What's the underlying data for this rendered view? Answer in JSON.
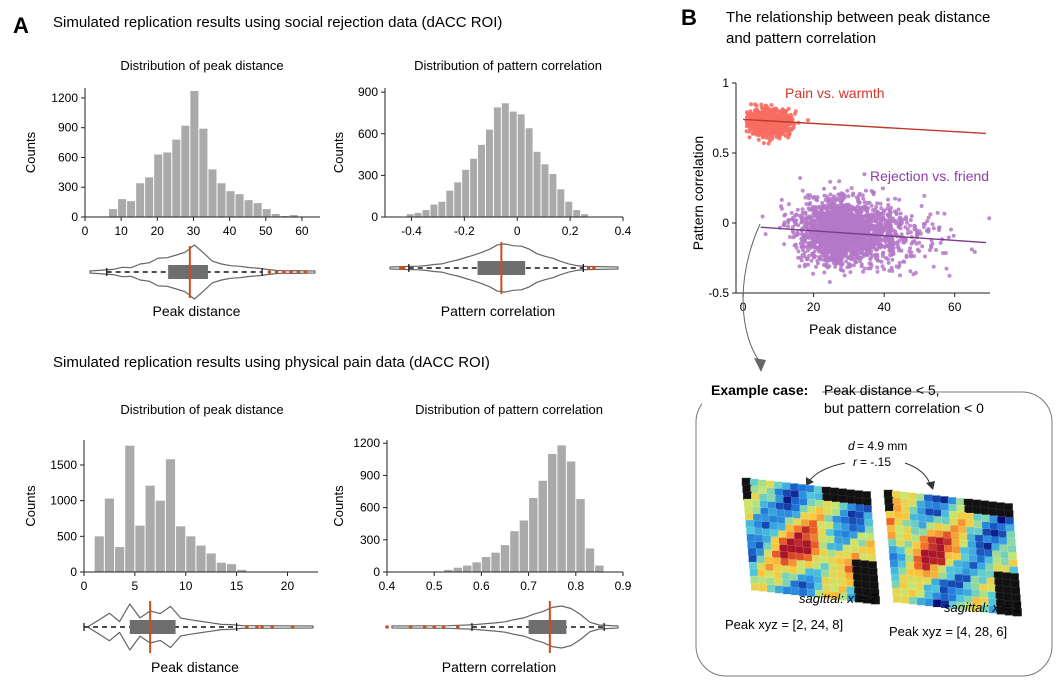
{
  "panel_a": {
    "letter": "A",
    "title_social": "Simulated replication results using social rejection data (dACC ROI)",
    "title_pain": "Simulated replication results using physical pain data (dACC ROI)"
  },
  "panel_b": {
    "letter": "B",
    "title_line1": "The relationship between peak distance",
    "title_line2": "and pattern correlation"
  },
  "example": {
    "heading": "Example case:",
    "line1": "Peak distance < 5,",
    "line2": "but pattern correlation < 0",
    "d_label": "d",
    "d_value": "= 4.9 mm",
    "r_label": "r",
    "r_value": "= -.15",
    "left_caption_italic": "sagittal: x = 2",
    "right_caption_italic": "sagittal: x = 2",
    "left_peak": "Peak xyz = [2, 24, 8]",
    "right_peak": "Peak xyz = [4, 28, 6]"
  },
  "colors": {
    "bar": "#aaaaaa",
    "violin_line": "#666666",
    "box": "#6e6e6e",
    "median": "#c8501c",
    "pain_scatter": "#f76d63",
    "pain_line": "#c0392b",
    "rejection_scatter": "#b478c8",
    "rejection_line": "#7a3b8c",
    "pain_label": "#d9342b",
    "rejection_label": "#8a3fa8"
  },
  "chart_data": [
    {
      "id": "social_peak",
      "type": "bar",
      "title": "Distribution of peak distance",
      "xlabel": "Peak distance",
      "ylabel": "Counts",
      "xlim": [
        0,
        65
      ],
      "ylim": [
        0,
        1300
      ],
      "xticks": [
        0,
        10,
        20,
        30,
        40,
        50,
        60
      ],
      "yticks": [
        0,
        300,
        600,
        900,
        1200
      ],
      "bin_width": 2.5,
      "bin_starts": [
        6.5,
        9,
        11.5,
        14,
        16.5,
        19,
        21.5,
        24,
        26.5,
        29,
        31.5,
        34,
        36.5,
        39,
        41.5,
        44,
        46.5,
        49,
        51.5,
        54,
        56.5
      ],
      "values": [
        80,
        180,
        160,
        340,
        400,
        630,
        650,
        780,
        920,
        1270,
        890,
        480,
        340,
        260,
        230,
        170,
        140,
        80,
        30,
        10,
        20
      ],
      "boxplot": {
        "q1": 23,
        "median": 29,
        "q3": 34,
        "whisker_low": 6,
        "whisker_high": 49,
        "outliers": [
          51,
          53,
          55,
          57,
          59,
          61
        ]
      }
    },
    {
      "id": "social_corr",
      "type": "bar",
      "title": "Distribution of pattern correlation",
      "xlabel": "Pattern correlation",
      "ylabel": "Counts",
      "xlim": [
        -0.5,
        0.4
      ],
      "ylim": [
        0,
        930
      ],
      "xticks": [
        -0.4,
        -0.2,
        0,
        0.2,
        0.4
      ],
      "xticklabels": [
        "-0.4",
        "-0.2",
        "0",
        "0.2",
        "0.4"
      ],
      "yticks": [
        0,
        300,
        600,
        900
      ],
      "bin_width": 0.03,
      "bin_starts": [
        -0.42,
        -0.39,
        -0.36,
        -0.33,
        -0.3,
        -0.27,
        -0.24,
        -0.21,
        -0.18,
        -0.15,
        -0.12,
        -0.09,
        -0.06,
        -0.03,
        0.0,
        0.03,
        0.06,
        0.09,
        0.12,
        0.15,
        0.18,
        0.21,
        0.24
      ],
      "values": [
        20,
        30,
        50,
        90,
        110,
        190,
        250,
        340,
        420,
        520,
        630,
        790,
        820,
        760,
        740,
        640,
        470,
        380,
        310,
        200,
        110,
        50,
        20
      ],
      "boxplot": {
        "q1": -0.15,
        "median": -0.06,
        "q3": 0.03,
        "whisker_low": -0.41,
        "whisker_high": 0.25,
        "outliers": [
          -0.44,
          -0.43,
          0.27,
          0.29
        ]
      }
    },
    {
      "id": "pain_peak",
      "type": "bar",
      "title": "Distribution of peak distance",
      "xlabel": "Peak distance",
      "ylabel": "Counts",
      "xlim": [
        0,
        23
      ],
      "ylim": [
        0,
        1850
      ],
      "xticks": [
        0,
        5,
        10,
        15,
        20
      ],
      "yticks": [
        0,
        500,
        1000,
        1500
      ],
      "bin_width": 1,
      "bin_starts": [
        1,
        2,
        3,
        4,
        5,
        6,
        7,
        8,
        9,
        10,
        11,
        12,
        13,
        14,
        15
      ],
      "values": [
        500,
        1030,
        350,
        1770,
        650,
        1210,
        1000,
        1580,
        640,
        500,
        370,
        260,
        130,
        110,
        30
      ],
      "boxplot": {
        "q1": 4.5,
        "median": 6.5,
        "q3": 9.0,
        "whisker_low": 0,
        "whisker_high": 15,
        "outliers": [
          16,
          17,
          17.5,
          18.5,
          20.5
        ]
      }
    },
    {
      "id": "pain_corr",
      "type": "bar",
      "title": "Distribution of pattern correlation",
      "xlabel": "Pattern correlation",
      "ylabel": "Counts",
      "xlim": [
        0.4,
        0.9
      ],
      "ylim": [
        0,
        1230
      ],
      "xticks": [
        0.4,
        0.5,
        0.6,
        0.7,
        0.8,
        0.9
      ],
      "xticklabels": [
        "0.4",
        "0.5",
        "0.6",
        "0.7",
        "0.8",
        "0.9"
      ],
      "yticks": [
        0,
        300,
        600,
        900,
        1200
      ],
      "bin_width": 0.02,
      "bin_starts": [
        0.52,
        0.54,
        0.56,
        0.58,
        0.6,
        0.62,
        0.64,
        0.66,
        0.68,
        0.7,
        0.72,
        0.74,
        0.76,
        0.78,
        0.8,
        0.82,
        0.84
      ],
      "values": [
        20,
        40,
        60,
        90,
        140,
        180,
        250,
        380,
        480,
        690,
        850,
        1100,
        1180,
        1030,
        680,
        220,
        60
      ],
      "boxplot": {
        "q1": 0.7,
        "median": 0.745,
        "q3": 0.78,
        "whisker_low": 0.58,
        "whisker_high": 0.86,
        "outliers": [
          0.4,
          0.45,
          0.48,
          0.5,
          0.52,
          0.55
        ]
      }
    },
    {
      "id": "scatter",
      "type": "scatter",
      "xlabel": "Peak distance",
      "ylabel": "Pattern correlation",
      "xlim": [
        -2,
        70
      ],
      "ylim": [
        -0.5,
        1.0
      ],
      "xticks": [
        0,
        20,
        40,
        60
      ],
      "yticks": [
        -0.5,
        0,
        0.5,
        1
      ],
      "yticklabels": [
        "-0.5",
        "0",
        "0.5",
        "1"
      ],
      "series": [
        {
          "name": "Pain vs. warmth",
          "x_range": [
            1,
            19
          ],
          "y_range": [
            0.5,
            0.85
          ],
          "x_center": 7,
          "y_center": 0.72,
          "fit_line": [
            [
              0,
              0.74
            ],
            [
              70,
              0.64
            ]
          ]
        },
        {
          "name": "Rejection vs. friend",
          "x_range": [
            5,
            70
          ],
          "y_range": [
            -0.45,
            0.35
          ],
          "x_center": 28,
          "y_center": -0.06,
          "fit_line": [
            [
              5,
              -0.03
            ],
            [
              70,
              -0.14
            ]
          ]
        }
      ]
    }
  ]
}
